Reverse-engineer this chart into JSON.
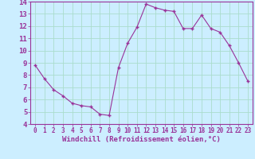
{
  "x": [
    0,
    1,
    2,
    3,
    4,
    5,
    6,
    7,
    8,
    9,
    10,
    11,
    12,
    13,
    14,
    15,
    16,
    17,
    18,
    19,
    20,
    21,
    22,
    23
  ],
  "y": [
    8.8,
    7.7,
    6.8,
    6.3,
    5.7,
    5.5,
    5.4,
    4.8,
    4.7,
    8.6,
    10.6,
    11.9,
    13.8,
    13.5,
    13.3,
    13.2,
    11.8,
    11.8,
    12.9,
    11.8,
    11.5,
    10.4,
    9.0,
    7.5
  ],
  "xlim": [
    -0.5,
    23.5
  ],
  "ylim": [
    4,
    14
  ],
  "yticks": [
    4,
    5,
    6,
    7,
    8,
    9,
    10,
    11,
    12,
    13,
    14
  ],
  "xticks": [
    0,
    1,
    2,
    3,
    4,
    5,
    6,
    7,
    8,
    9,
    10,
    11,
    12,
    13,
    14,
    15,
    16,
    17,
    18,
    19,
    20,
    21,
    22,
    23
  ],
  "xlabel": "Windchill (Refroidissement éolien,°C)",
  "line_color": "#993399",
  "marker": "+",
  "bg_color": "#cceeff",
  "grid_color": "#aaddcc",
  "tick_color": "#993399",
  "label_color": "#993399",
  "xlabel_fontsize": 6.5,
  "ytick_fontsize": 6.5,
  "xtick_fontsize": 5.5
}
